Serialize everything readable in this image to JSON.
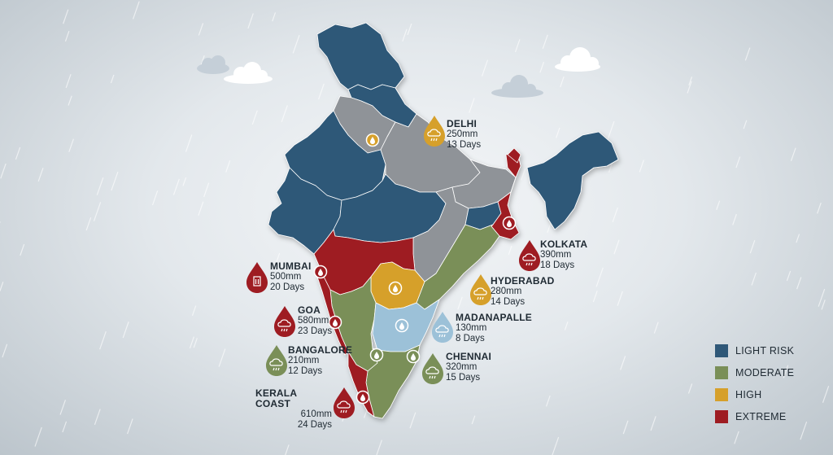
{
  "colors": {
    "light_risk": "#2f5878",
    "moderate": "#7a8f58",
    "high": "#d6a02b",
    "extreme": "#9e1c22",
    "unrated_grey": "#8f9398",
    "pale_blue": "#9cc1d8"
  },
  "legend": [
    {
      "label": "LIGHT RISK",
      "color": "#2f5878"
    },
    {
      "label": "MODERATE",
      "color": "#7a8f58"
    },
    {
      "label": "HIGH",
      "color": "#d6a02b"
    },
    {
      "label": "EXTREME",
      "color": "#9e1c22"
    }
  ],
  "cities": [
    {
      "name": "DELHI",
      "rainfall": "250mm",
      "days": "13 Days",
      "level": "HIGH",
      "color": "#d6a02b",
      "icon": "rain-cloud-icon"
    },
    {
      "name": "KOLKATA",
      "rainfall": "390mm",
      "days": "18 Days",
      "level": "EXTREME",
      "color": "#9e1c22",
      "icon": "rain-cloud-icon"
    },
    {
      "name": "MUMBAI",
      "rainfall": "500mm",
      "days": "20 Days",
      "level": "EXTREME",
      "color": "#9e1c22",
      "icon": "building-icon"
    },
    {
      "name": "HYDERABAD",
      "rainfall": "280mm",
      "days": "14 Days",
      "level": "HIGH",
      "color": "#d6a02b",
      "icon": "rain-cloud-icon"
    },
    {
      "name": "GOA",
      "rainfall": "580mm",
      "days": "23 Days",
      "level": "EXTREME",
      "color": "#9e1c22",
      "icon": "rain-cloud-icon"
    },
    {
      "name": "MADANAPALLE",
      "rainfall": "130mm",
      "days": "8 Days",
      "level": "PALE",
      "color": "#9cc1d8",
      "icon": "rain-cloud-icon"
    },
    {
      "name": "BANGALORE",
      "rainfall": "210mm",
      "days": "12 Days",
      "level": "MODERATE",
      "color": "#7a8f58",
      "icon": "rain-cloud-icon"
    },
    {
      "name": "CHENNAI",
      "rainfall": "320mm",
      "days": "15 Days",
      "level": "MODERATE",
      "color": "#7a8f58",
      "icon": "rain-cloud-icon"
    },
    {
      "name": "KERALA COAST",
      "rainfall": "610mm",
      "days": "24 Days",
      "level": "EXTREME",
      "color": "#9e1c22",
      "icon": "rain-cloud-icon"
    }
  ]
}
